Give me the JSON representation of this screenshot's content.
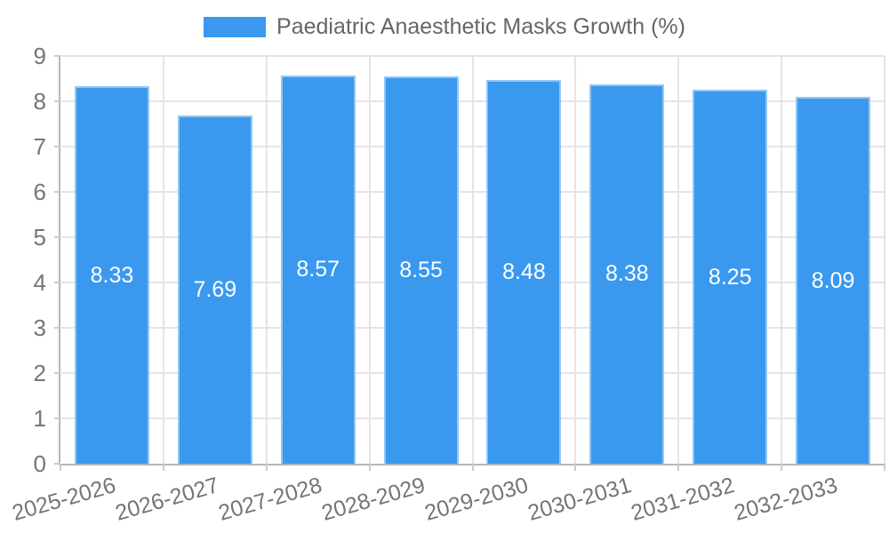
{
  "chart_data": {
    "type": "bar",
    "title": "Paediatric Anaesthetic Masks Growth (%)",
    "categories": [
      "2025-2026",
      "2026-2027",
      "2027-2028",
      "2028-2029",
      "2029-2030",
      "2030-2031",
      "2031-2032",
      "2032-2033"
    ],
    "series": [
      {
        "name": "Paediatric Anaesthetic Masks Growth (%)",
        "values": [
          8.33,
          7.69,
          8.57,
          8.55,
          8.48,
          8.38,
          8.25,
          8.09
        ],
        "data_labels": [
          "8.33",
          "7.69",
          "8.57",
          "8.55",
          "8.48",
          "8.38",
          "8.25",
          "8.09"
        ]
      }
    ],
    "xlabel": "",
    "ylabel": "",
    "ylim": [
      0,
      9
    ],
    "yticks": [
      "0",
      "1",
      "2",
      "3",
      "4",
      "5",
      "6",
      "7",
      "8",
      "9"
    ],
    "grid": true,
    "legend_position": "top",
    "colors": {
      "bar_fill": "#3A99EE",
      "bar_border": "#93C7F3",
      "grid": "#E4E4E4",
      "axis": "#B5B5B5",
      "tick_text": "#757575",
      "title_text": "#666666",
      "data_label_text": "#FFFFFF"
    }
  }
}
